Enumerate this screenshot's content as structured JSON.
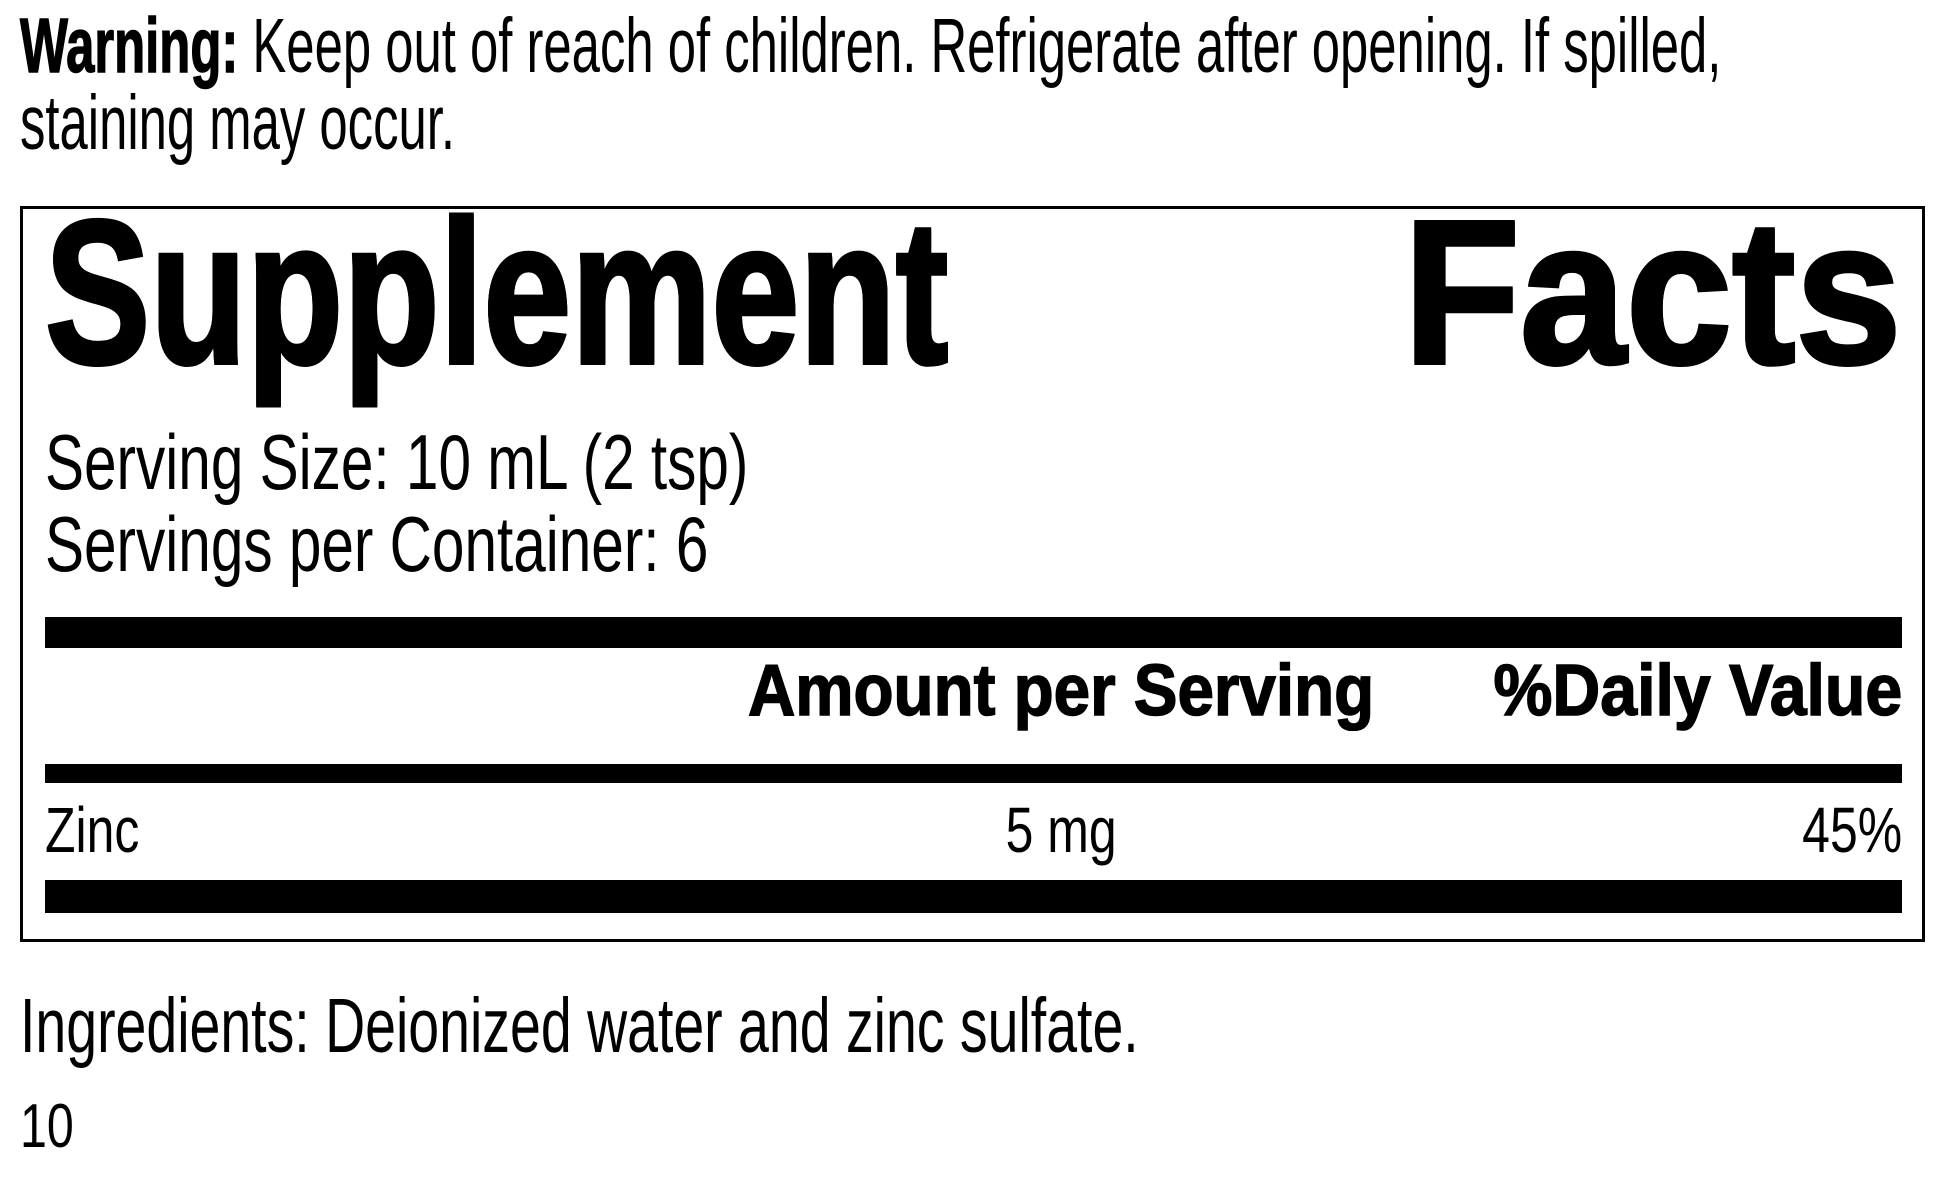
{
  "warning": {
    "label": "Warning:",
    "line1": " Keep out of reach of children. Refrigerate after opening. If spilled,",
    "line2": "staining may occur."
  },
  "panel": {
    "title_left": "Supplement",
    "title_right": "Facts",
    "serving_size": "Serving Size: 10 mL (2 tsp)",
    "servings_per_container": "Servings per Container: 6",
    "columns": {
      "amount": "Amount per Serving",
      "dv": "%Daily Value"
    },
    "rows": [
      {
        "name": "Zinc",
        "amount": "5 mg",
        "dv": "45%"
      }
    ]
  },
  "ingredients": "Ingredients: Deionized water and zinc sulfate.",
  "page_number": "10",
  "colors": {
    "text": "#000000",
    "background": "#ffffff",
    "rule_bar": "#000000"
  }
}
